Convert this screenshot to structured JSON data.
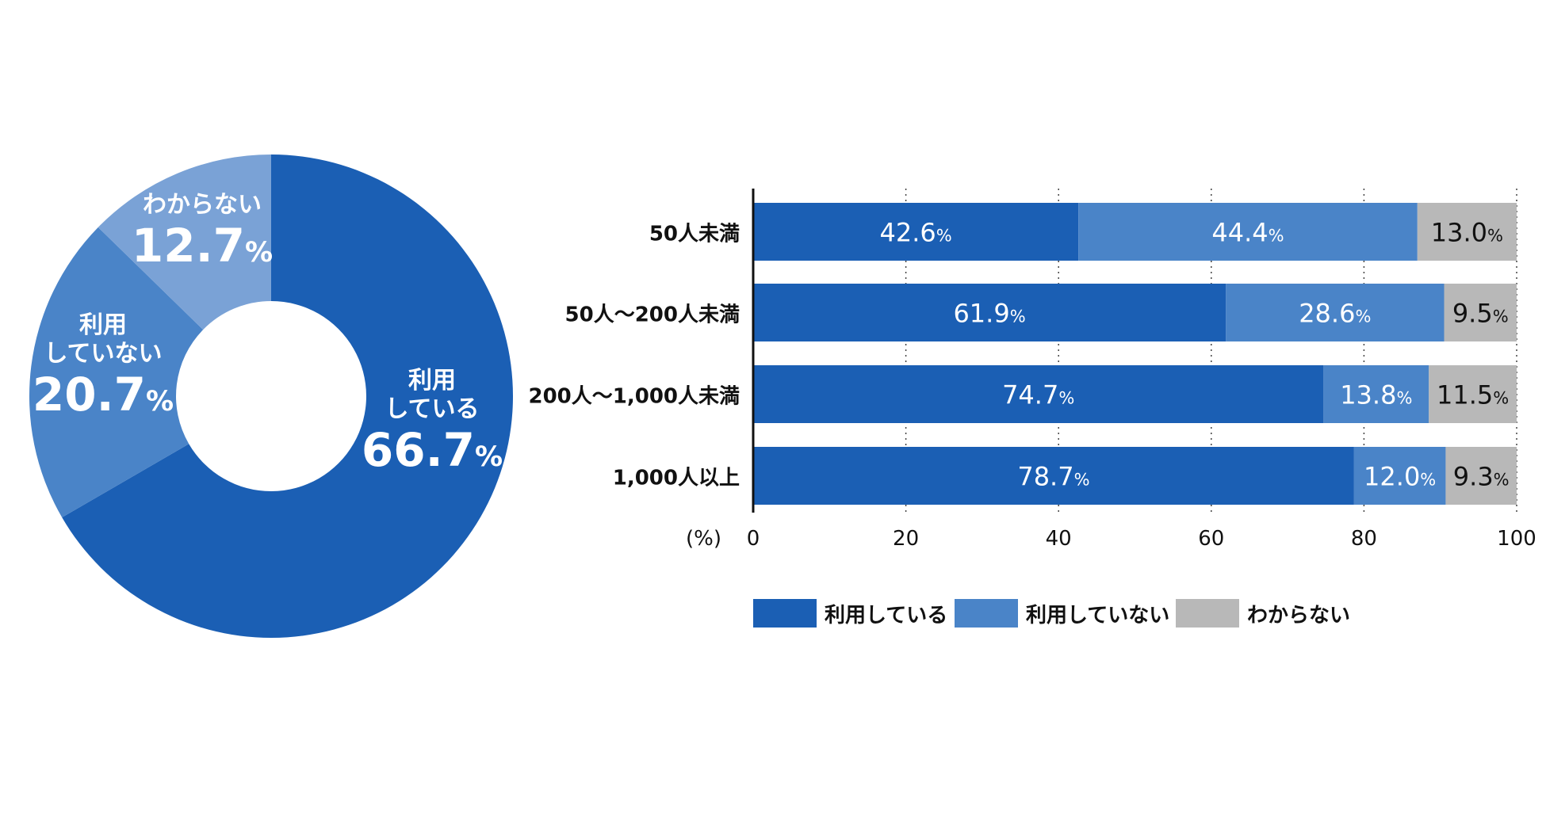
{
  "chart_data": [
    {
      "type": "pie",
      "labels": [
        [
          "利用",
          "している"
        ],
        [
          "利用",
          "していない"
        ],
        [
          "わからない"
        ]
      ],
      "values": [
        66.7,
        20.7,
        12.7
      ],
      "value_labels": [
        "66.7",
        "20.7",
        "12.7"
      ],
      "unit": "%",
      "colors": [
        "#1b5fb4",
        "#4a84c8",
        "#7aa2d6"
      ],
      "hole": true
    },
    {
      "type": "bar",
      "orientation": "horizontal",
      "stacked": true,
      "categories": [
        "50人未満",
        "50人～200人未満",
        "200人～1,000人未満",
        "1,000人以上"
      ],
      "series": [
        {
          "name": "利用している",
          "values": [
            42.6,
            61.9,
            74.7,
            78.7
          ],
          "color": "#1b5fb4"
        },
        {
          "name": "利用していない",
          "values": [
            44.4,
            28.6,
            13.8,
            12.0
          ],
          "color": "#4a84c8"
        },
        {
          "name": "わからない",
          "values": [
            13.0,
            9.5,
            11.5,
            9.3
          ],
          "color": "#b8b8b8"
        }
      ],
      "unit": "%",
      "xlabel": "(%)",
      "xlim": [
        0,
        100
      ],
      "xticks": [
        0,
        20,
        40,
        60,
        80,
        100
      ],
      "grid": "vertical-dotted",
      "legend": "bottom"
    }
  ]
}
